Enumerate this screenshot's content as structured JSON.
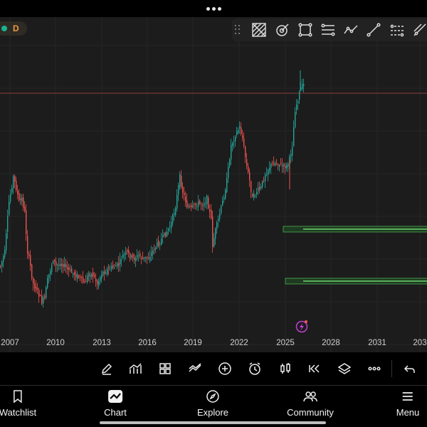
{
  "symbol": {
    "interval": "D",
    "status_color": "#19b38d",
    "interval_color": "#f09a3e"
  },
  "drawing_tools": [
    "pattern-tool-icon",
    "gann-fan-icon",
    "rectangle-tool-icon",
    "fib-retracement-icon",
    "polyline-tool-icon",
    "trend-line-icon",
    "parallel-channel-icon",
    "regression-trend-icon"
  ],
  "time_axis": [
    "2007",
    "2010",
    "2013",
    "2016",
    "2019",
    "2022",
    "2025",
    "2028",
    "2031",
    "203"
  ],
  "chart_data": {
    "type": "candlestick",
    "x": [
      "2006",
      "2007",
      "2008",
      "2009",
      "2010",
      "2011",
      "2012",
      "2013",
      "2014",
      "2015",
      "2016",
      "2017",
      "2018",
      "2019",
      "2020",
      "2021",
      "2022",
      "2023",
      "2024",
      "2025"
    ],
    "close_trend": [
      30,
      62,
      35,
      28,
      38,
      37,
      32,
      35,
      40,
      48,
      55,
      62,
      80,
      60,
      48,
      74,
      86,
      68,
      78,
      110
    ],
    "colors": {
      "up": "#26a69a",
      "down": "#ef5350",
      "zone": "#4caf50",
      "price_line": "#8a3b3b"
    }
  },
  "toolbar": [
    "pencil-icon",
    "indicators-icon",
    "layouts-icon",
    "compare-icon",
    "add-icon",
    "alert-clock-icon",
    "chart-type-icon",
    "replay-icon",
    "layers-icon",
    "more-icon",
    "undo-icon"
  ],
  "nav": {
    "watchlist": "Watchlist",
    "chart": "Chart",
    "explore": "Explore",
    "community": "Community",
    "menu": "Menu"
  }
}
